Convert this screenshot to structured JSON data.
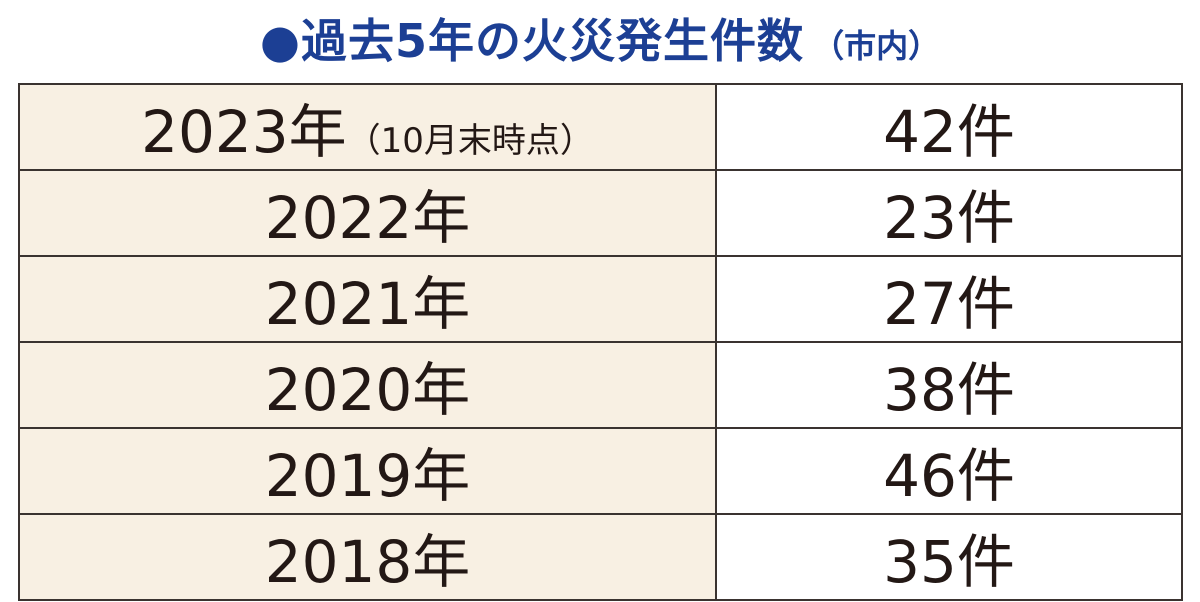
{
  "header": {
    "title": "●過去5年の火災発生件数",
    "subtitle": "（市内）"
  },
  "table": {
    "rows": [
      {
        "year": "2023年",
        "note": "（10月末時点）",
        "count": "42件"
      },
      {
        "year": "2022年",
        "count": "23件"
      },
      {
        "year": "2021年",
        "count": "27件"
      },
      {
        "year": "2020年",
        "count": "38件"
      },
      {
        "year": "2019年",
        "count": "46件"
      },
      {
        "year": "2018年",
        "count": "35件"
      }
    ]
  }
}
